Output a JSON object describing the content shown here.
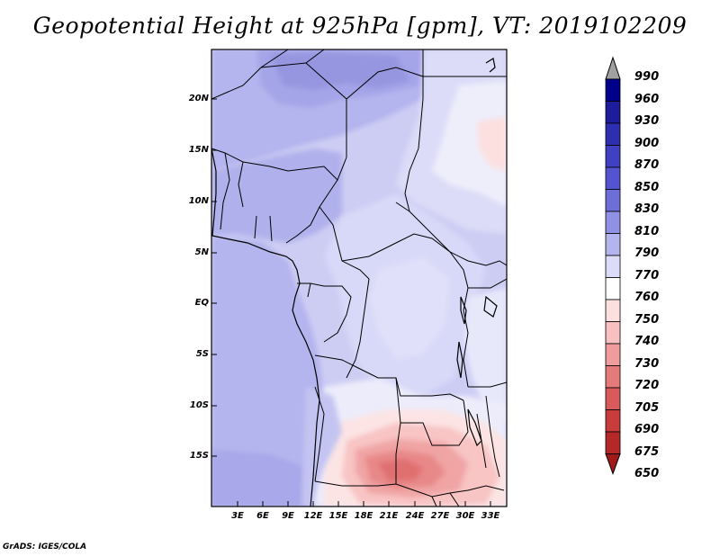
{
  "title": "Geopotential Height at 925hPa [gpm], VT: 2019102209",
  "credit": "GrADS: IGES/COLA",
  "map": {
    "lat_labels": [
      "20N",
      "15N",
      "10N",
      "5N",
      "EQ",
      "5S",
      "10S",
      "15S"
    ],
    "lon_labels": [
      "3E",
      "6E",
      "9E",
      "12E",
      "15E",
      "18E",
      "21E",
      "24E",
      "27E",
      "30E",
      "33E"
    ]
  },
  "colorbar": {
    "labels": [
      "990",
      "960",
      "930",
      "900",
      "870",
      "850",
      "830",
      "810",
      "790",
      "770",
      "760",
      "750",
      "740",
      "730",
      "720",
      "705",
      "690",
      "675",
      "650"
    ],
    "colors": [
      "#a0a0a0",
      "#00008b",
      "#1c1c9c",
      "#2e2eb0",
      "#4040c4",
      "#5454d0",
      "#6e6ed8",
      "#9090e4",
      "#b4b4ee",
      "#dcdcf8",
      "#ffffff",
      "#fce0e0",
      "#f8c0c0",
      "#f09c9c",
      "#e47a7a",
      "#d85a5a",
      "#c83c3c",
      "#b42828",
      "#a01a1a"
    ]
  }
}
